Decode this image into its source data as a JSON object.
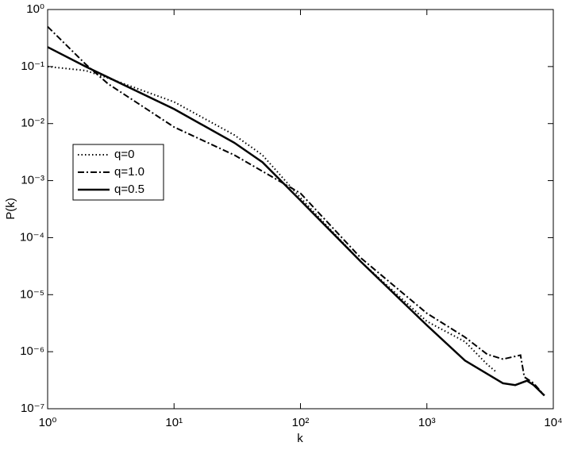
{
  "chart_data": {
    "type": "line",
    "xlabel": "k",
    "ylabel": "P(k)",
    "xscale": "log",
    "yscale": "log",
    "legend": "left",
    "xlim": [
      1,
      10000
    ],
    "xticks": [
      {
        "value": 1,
        "label": "10⁰"
      },
      {
        "value": 10,
        "label": "10¹"
      },
      {
        "value": 100,
        "label": "10²"
      },
      {
        "value": 1000,
        "label": "10³"
      },
      {
        "value": 10000,
        "label": "10⁴"
      }
    ],
    "ylim": [
      1e-07,
      1
    ],
    "yticks": [
      {
        "value": 1e-07,
        "label": "10⁻⁷"
      },
      {
        "value": 1e-06,
        "label": "10⁻⁶"
      },
      {
        "value": 1e-05,
        "label": "10⁻⁵"
      },
      {
        "value": 0.0001,
        "label": "10⁻⁴"
      },
      {
        "value": 0.001,
        "label": "10⁻³"
      },
      {
        "value": 0.01,
        "label": "10⁻²"
      },
      {
        "value": 0.1,
        "label": "10⁻¹"
      },
      {
        "value": 1,
        "label": "10⁰"
      }
    ],
    "series": [
      {
        "name": "q=0",
        "color": "#000000",
        "linestyle": "dotted",
        "x": [
          1,
          2,
          3,
          10,
          30,
          50,
          100,
          300,
          1000,
          2000,
          3000,
          3500
        ],
        "values": [
          0.1,
          0.085,
          0.063,
          0.024,
          0.0063,
          0.0028,
          0.0005,
          3.8e-05,
          3.4e-06,
          1.5e-06,
          6e-07,
          4.5e-07
        ]
      },
      {
        "name": "q=1.0",
        "color": "#000000",
        "linestyle": "dashdot",
        "x": [
          1,
          2,
          3,
          10,
          30,
          100,
          300,
          1000,
          2000,
          3000,
          4000,
          5500,
          5900,
          7000,
          8500
        ],
        "values": [
          0.5,
          0.11,
          0.05,
          0.0087,
          0.0028,
          0.0006,
          4.4e-05,
          4.7e-06,
          1.8e-06,
          9e-07,
          7.4e-07,
          8.7e-07,
          3.6e-07,
          2.8e-07,
          1.7e-07
        ]
      },
      {
        "name": "q=0.5",
        "color": "#000000",
        "linestyle": "solid",
        "x": [
          1,
          2,
          10,
          30,
          50,
          100,
          300,
          1000,
          2000,
          4000,
          5000,
          6200,
          7000,
          8500
        ],
        "values": [
          0.22,
          0.1,
          0.018,
          0.0046,
          0.0021,
          0.00045,
          3.8e-05,
          2.9e-06,
          7e-07,
          2.8e-07,
          2.6e-07,
          3.1e-07,
          2.6e-07,
          1.7e-07
        ]
      }
    ]
  }
}
